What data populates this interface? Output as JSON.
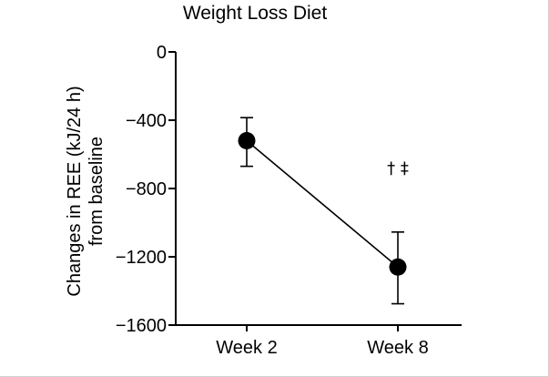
{
  "chart_data": {
    "type": "line",
    "title": "Weight Loss Diet",
    "ylabel_line1": "Changes in REE (kJ/24 h)",
    "ylabel_line2": "from baseline",
    "xlabel": "",
    "categories": [
      "Week 2",
      "Week 8"
    ],
    "series": [
      {
        "values": [
          -520,
          -1260
        ],
        "error_upper": [
          -385,
          -1055
        ],
        "error_lower": [
          -670,
          -1475
        ]
      }
    ],
    "ylim": [
      -1600,
      0
    ],
    "yticks": [
      0,
      -400,
      -800,
      -1200,
      -1600
    ],
    "ytick_labels": [
      "0",
      "−400",
      "−800",
      "−1200",
      "−1600"
    ],
    "annotation": {
      "text": "† ‡",
      "category_index": 1,
      "y": -680
    },
    "grid": false,
    "legend": "none"
  }
}
